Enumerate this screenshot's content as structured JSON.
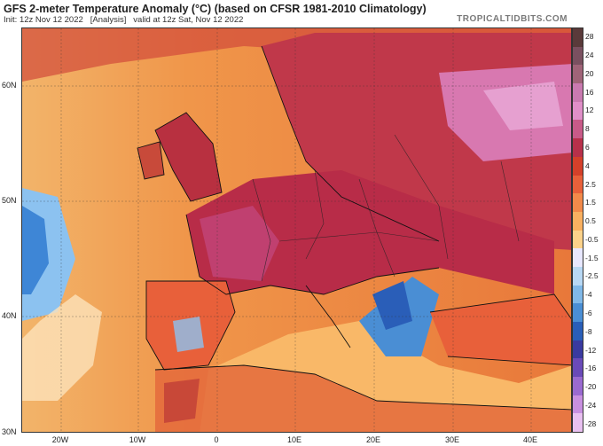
{
  "header": {
    "title": "GFS 2-meter Temperature Anomaly (°C) (based on CFSR 1981-2010 Climatology)",
    "init": "Init: 12z Nov 12 2022",
    "analysis": "[Analysis]",
    "valid": "valid at 12z Sat, Nov 12 2022",
    "brand": "TROPICALTIDBITS.COM"
  },
  "lat_labels": [
    "60N",
    "50N",
    "40N",
    "30N"
  ],
  "lon_labels": [
    "20W",
    "10W",
    "0",
    "10E",
    "20E",
    "30E",
    "40E"
  ],
  "colorbar": {
    "ticks": [
      "28",
      "24",
      "20",
      "16",
      "12",
      "8",
      "6",
      "4",
      "2.5",
      "1.5",
      "0.5",
      "-0.5",
      "-1.5",
      "-2.5",
      "-4",
      "-6",
      "-8",
      "-12",
      "-16",
      "-20",
      "-24",
      "-28"
    ],
    "colors": [
      "#5a3a3a",
      "#7a5060",
      "#a06478",
      "#c97ab0",
      "#e08fc8",
      "#c85a88",
      "#b8304a",
      "#d4402a",
      "#e8603a",
      "#f28a4a",
      "#f9b060",
      "#fcd28a",
      "#e8e8ff",
      "#b8d8f4",
      "#80b8e8",
      "#4a8ed4",
      "#2a5eb8",
      "#3a3aa0",
      "#6a4ab8",
      "#9a6ad0",
      "#c890e0",
      "#e8c0f0"
    ]
  }
}
